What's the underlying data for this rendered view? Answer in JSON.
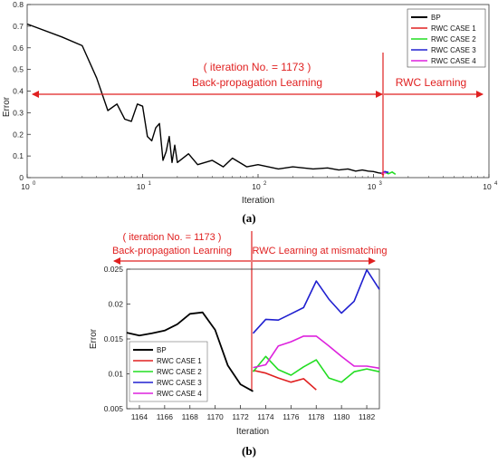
{
  "chart_data": [
    {
      "type": "line",
      "panel_label": "(a)",
      "xlabel": "Iteration",
      "ylabel": "Error",
      "xscale": "log",
      "xlim": [
        1,
        10000
      ],
      "ylim": [
        0,
        0.8
      ],
      "x_ticks": [
        "10",
        "10",
        "10",
        "10",
        "10"
      ],
      "x_tick_exponents": [
        "0",
        "1",
        "2",
        "3",
        "4"
      ],
      "y_ticks": [
        "0",
        "0.1",
        "0.2",
        "0.3",
        "0.4",
        "0.5",
        "0.6",
        "0.7",
        "0.8"
      ],
      "legend_position": "top-right",
      "series": [
        {
          "name": "BP",
          "color": "#000000",
          "x": [
            1,
            2,
            3,
            4,
            5,
            6,
            7,
            8,
            9,
            10,
            11,
            12,
            13,
            14,
            15,
            16,
            17,
            18,
            19,
            20,
            25,
            30,
            40,
            50,
            60,
            80,
            100,
            150,
            200,
            300,
            400,
            500,
            600,
            700,
            800,
            900,
            1000,
            1100,
            1173
          ],
          "y": [
            0.71,
            0.65,
            0.61,
            0.46,
            0.31,
            0.34,
            0.27,
            0.26,
            0.34,
            0.33,
            0.19,
            0.17,
            0.23,
            0.25,
            0.08,
            0.12,
            0.19,
            0.07,
            0.15,
            0.07,
            0.11,
            0.06,
            0.08,
            0.05,
            0.09,
            0.05,
            0.06,
            0.04,
            0.05,
            0.04,
            0.045,
            0.035,
            0.04,
            0.03,
            0.035,
            0.03,
            0.028,
            0.022,
            0.02
          ]
        },
        {
          "name": "RWC CASE 1",
          "color": "#e02020",
          "x": [
            1173,
            1200,
            1230
          ],
          "y": [
            0.02,
            0.015,
            0.012
          ]
        },
        {
          "name": "RWC CASE 2",
          "color": "#22dd22",
          "x": [
            1173,
            1250,
            1350,
            1450,
            1550
          ],
          "y": [
            0.02,
            0.025,
            0.018,
            0.026,
            0.015
          ]
        },
        {
          "name": "RWC CASE 3",
          "color": "#2020d0",
          "x": [
            1173,
            1250,
            1350
          ],
          "y": [
            0.02,
            0.028,
            0.024
          ]
        },
        {
          "name": "RWC CASE 4",
          "color": "#dd22dd",
          "x": [
            1173,
            1220,
            1280
          ],
          "y": [
            0.02,
            0.024,
            0.021
          ]
        }
      ],
      "annotations": {
        "iteration_label": "( iteration No. = 1173 )",
        "bp_label": "Back-propagation Learning",
        "rwc_label": "RWC Learning"
      }
    },
    {
      "type": "line",
      "panel_label": "(b)",
      "xlabel": "Iteration",
      "ylabel": "Error",
      "xlim": [
        1163,
        1183
      ],
      "ylim": [
        0.005,
        0.025
      ],
      "x_ticks": [
        "1164",
        "1166",
        "1168",
        "1170",
        "1172",
        "1174",
        "1176",
        "1178",
        "1180",
        "1182"
      ],
      "y_ticks": [
        "0.005",
        "0.01",
        "0.015",
        "0.02",
        "0.025"
      ],
      "legend_position": "bottom-left",
      "series": [
        {
          "name": "BP",
          "color": "#000000",
          "x": [
            1163,
            1164,
            1165,
            1166,
            1167,
            1168,
            1169,
            1170,
            1171,
            1172,
            1173
          ],
          "y": [
            0.0159,
            0.0155,
            0.0158,
            0.0162,
            0.0171,
            0.0186,
            0.0188,
            0.0163,
            0.0112,
            0.0085,
            0.0075
          ]
        },
        {
          "name": "RWC CASE 1",
          "color": "#e02020",
          "x": [
            1173,
            1174,
            1175,
            1176,
            1177,
            1178
          ],
          "y": [
            0.0105,
            0.0101,
            0.0094,
            0.0088,
            0.0093,
            0.0077
          ]
        },
        {
          "name": "RWC CASE 2",
          "color": "#22dd22",
          "x": [
            1173,
            1174,
            1175,
            1176,
            1177,
            1178,
            1179,
            1180,
            1181,
            1182,
            1183
          ],
          "y": [
            0.0103,
            0.0125,
            0.0106,
            0.0098,
            0.011,
            0.012,
            0.0094,
            0.0088,
            0.0103,
            0.0107,
            0.0103
          ]
        },
        {
          "name": "RWC CASE 3",
          "color": "#2020d0",
          "x": [
            1173,
            1174,
            1175,
            1176,
            1177,
            1178,
            1179,
            1180,
            1181,
            1182,
            1183
          ],
          "y": [
            0.0158,
            0.0178,
            0.0177,
            0.0186,
            0.0195,
            0.0233,
            0.0207,
            0.0187,
            0.0204,
            0.0249,
            0.0221
          ]
        },
        {
          "name": "RWC CASE 4",
          "color": "#dd22dd",
          "x": [
            1173,
            1174,
            1175,
            1176,
            1177,
            1178,
            1179,
            1180,
            1181,
            1182,
            1183
          ],
          "y": [
            0.0109,
            0.0113,
            0.014,
            0.0146,
            0.0154,
            0.0154,
            0.014,
            0.0125,
            0.0111,
            0.0111,
            0.0108
          ]
        }
      ],
      "annotations": {
        "iteration_label": "( iteration No. = 1173 )",
        "bp_label": "Back-propagation Learning",
        "rwc_label": "RWC Learning at mismatching"
      }
    }
  ]
}
